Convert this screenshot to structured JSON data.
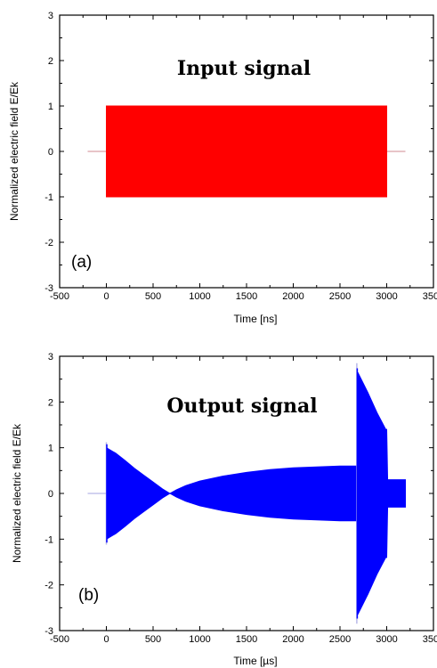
{
  "chart_data": [
    {
      "type": "area",
      "panel_label": "(a)",
      "title": "Input signal",
      "xlabel": "Time [ns]",
      "ylabel": "Normalized electric field E/Ek",
      "xlim": [
        -500,
        3500
      ],
      "ylim": [
        -3,
        3
      ],
      "xticks": [
        "-500",
        "0",
        "500",
        "1000",
        "1500",
        "2000",
        "2500",
        "3000",
        "3500"
      ],
      "yticks": [
        "3",
        "2",
        "1",
        "0",
        "-1",
        "-2",
        "-3"
      ],
      "fill_color": "#ff0000",
      "baseline_color": "#d9a0a8",
      "series": [
        {
          "envelope": [
            [
              0,
              1.0
            ],
            [
              3000,
              1.0
            ]
          ],
          "baseline": [
            [
              -200,
              0
            ],
            [
              3200,
              0
            ]
          ]
        }
      ]
    },
    {
      "type": "area",
      "panel_label": "(b)",
      "title": "Output signal",
      "xlabel": "Time [µs]",
      "ylabel": "Normalized electric field E/Ek",
      "xlim": [
        -500,
        3500
      ],
      "ylim": [
        -3,
        3
      ],
      "xticks": [
        "-500",
        "0",
        "500",
        "1000",
        "1500",
        "2000",
        "2500",
        "3000",
        "3500"
      ],
      "yticks": [
        "3",
        "2",
        "1",
        "0",
        "-1",
        "-2",
        "-3"
      ],
      "fill_color": "#0000ff",
      "baseline_color": "#b8b8e8",
      "series": [
        {
          "envelope": [
            [
              0,
              1.0
            ],
            [
              100,
              0.88
            ],
            [
              200,
              0.72
            ],
            [
              300,
              0.55
            ],
            [
              400,
              0.4
            ],
            [
              500,
              0.25
            ],
            [
              600,
              0.1
            ],
            [
              680,
              0.0
            ],
            [
              750,
              0.08
            ],
            [
              850,
              0.17
            ],
            [
              1000,
              0.27
            ],
            [
              1250,
              0.38
            ],
            [
              1500,
              0.46
            ],
            [
              1750,
              0.52
            ],
            [
              2000,
              0.56
            ],
            [
              2250,
              0.58
            ],
            [
              2500,
              0.6
            ],
            [
              2680,
              0.6
            ],
            [
              2690,
              2.65
            ],
            [
              2800,
              2.2
            ],
            [
              2900,
              1.75
            ],
            [
              2990,
              1.4
            ],
            [
              3000,
              1.4
            ],
            [
              3010,
              0.3
            ],
            [
              3200,
              0.3
            ]
          ],
          "peaks": [
            [
              0,
              1.12
            ],
            [
              2680,
              2.85
            ]
          ],
          "baseline": [
            [
              -200,
              0
            ],
            [
              0,
              0
            ]
          ]
        }
      ]
    }
  ]
}
